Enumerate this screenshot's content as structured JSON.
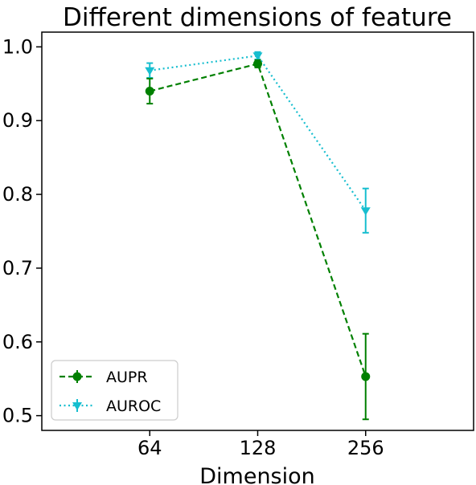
{
  "chart_data": {
    "type": "line",
    "title": "Different dimensions of feature",
    "xlabel": "Dimension",
    "ylabel": "",
    "categories": [
      "64",
      "128",
      "256"
    ],
    "x_axis_positions": [
      0,
      1,
      2
    ],
    "xlim": [
      -1,
      3
    ],
    "ylim": [
      0.48,
      1.02
    ],
    "yticks": [
      0.5,
      0.6,
      0.7,
      0.8,
      0.9,
      1.0
    ],
    "ytick_labels": [
      "0.5",
      "0.6",
      "0.7",
      "0.8",
      "0.9",
      "1.0"
    ],
    "grid": false,
    "legend_position": "lower-left",
    "series": [
      {
        "name": "AUPR",
        "values": [
          0.94,
          0.977,
          0.553
        ],
        "errors": [
          0.017,
          0.005,
          0.058
        ],
        "color": "#008000",
        "linestyle": "dashed",
        "marker": "circle"
      },
      {
        "name": "AUROC",
        "values": [
          0.968,
          0.988,
          0.778
        ],
        "errors": [
          0.01,
          0.005,
          0.03
        ],
        "color": "#17becf",
        "linestyle": "dotted",
        "marker": "triangle-down"
      }
    ]
  }
}
